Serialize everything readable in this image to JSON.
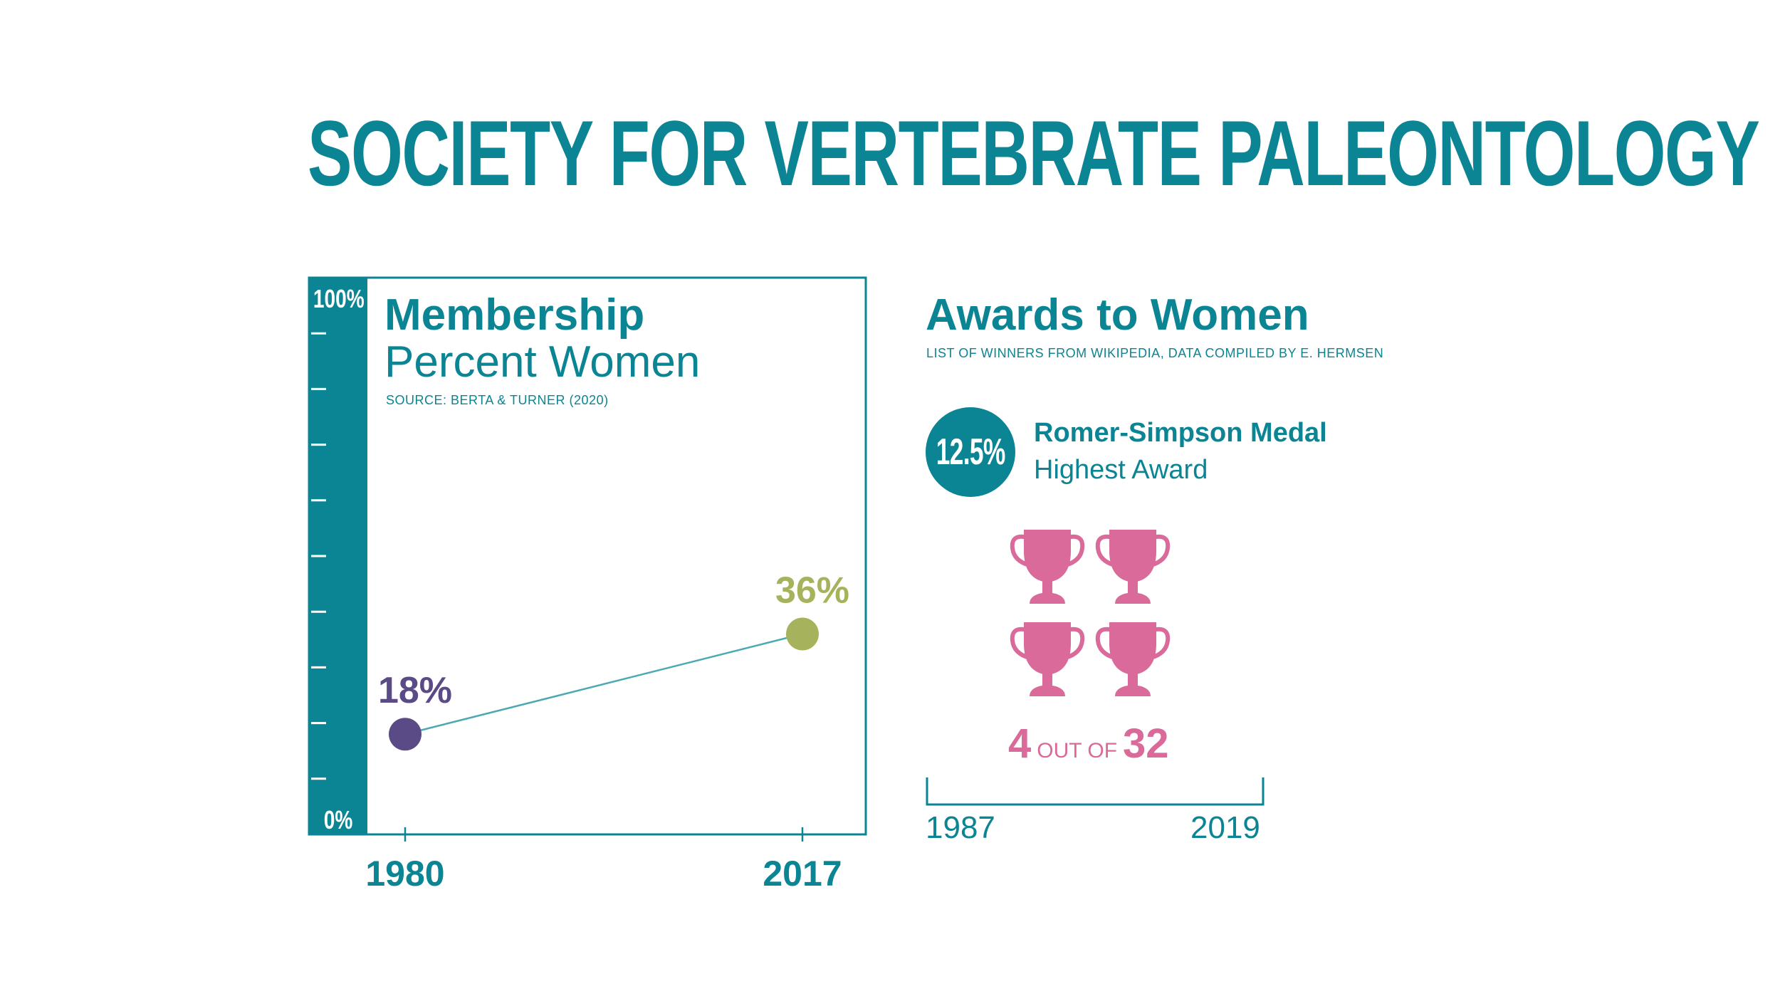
{
  "page_title": "SOCIETY FOR VERTEBRATE PALEONTOLOGY",
  "chart_data": {
    "type": "line",
    "title": "Membership",
    "subtitle": "Percent Women",
    "source": "SOURCE: BERTA & TURNER (2020)",
    "x": [
      1980,
      2017
    ],
    "x_tick_labels": [
      "1980",
      "2017"
    ],
    "series": [
      {
        "values": [
          18,
          36
        ],
        "data_labels": [
          "18%",
          "36%"
        ],
        "point_colors": [
          "#5a4b86",
          "#a7b25c"
        ]
      }
    ],
    "ylim": [
      0,
      100
    ],
    "y_tick_labels": [
      "0%",
      "100%"
    ],
    "grid": false,
    "colors": {
      "axis": "#0b8493",
      "line": "#4aa9b3"
    }
  },
  "awards": {
    "title": "Awards to Women",
    "source": "LIST OF WINNERS FROM WIKIPEDIA, DATA COMPILED BY E. HERMSEN",
    "badge_percent": "12.5%",
    "award_name": "Romer-Simpson Medal",
    "award_desc": "Highest Award",
    "count_women": "4",
    "count_mid": "OUT OF",
    "count_total": "32",
    "trophy_icon": "trophy-icon",
    "trophy_count_shown": 4,
    "year_start": "1987",
    "year_end": "2019",
    "colors": {
      "accent": "#0b8493",
      "trophy": "#d96a9a"
    }
  }
}
